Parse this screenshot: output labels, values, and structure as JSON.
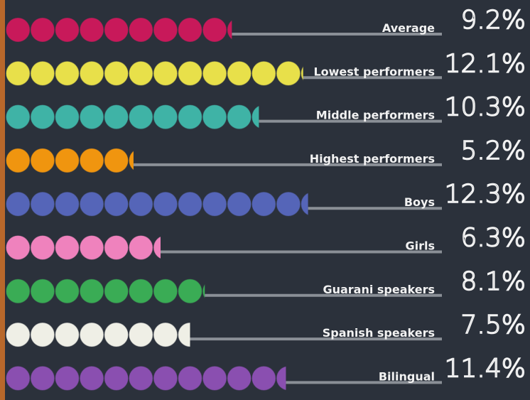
{
  "chart_data": {
    "type": "bar",
    "categories": [
      "Average",
      "Lowest performers",
      "Middle performers",
      "Highest performers",
      "Boys",
      "Girls",
      "Guarani speakers",
      "Spanish speakers",
      "Bilingual"
    ],
    "values": [
      9.2,
      12.1,
      10.3,
      5.2,
      12.3,
      6.3,
      8.1,
      7.5,
      11.4
    ],
    "value_labels": [
      "9.2%",
      "12.1%",
      "10.3%",
      "5.2%",
      "12.3%",
      "6.3%",
      "8.1%",
      "7.5%",
      "11.4%"
    ],
    "colors": [
      "#c8195a",
      "#e8e04a",
      "#3fb3a6",
      "#f0950f",
      "#5565b8",
      "#ef82bd",
      "#3aac55",
      "#efefe6",
      "#8a4fb0"
    ]
  }
}
